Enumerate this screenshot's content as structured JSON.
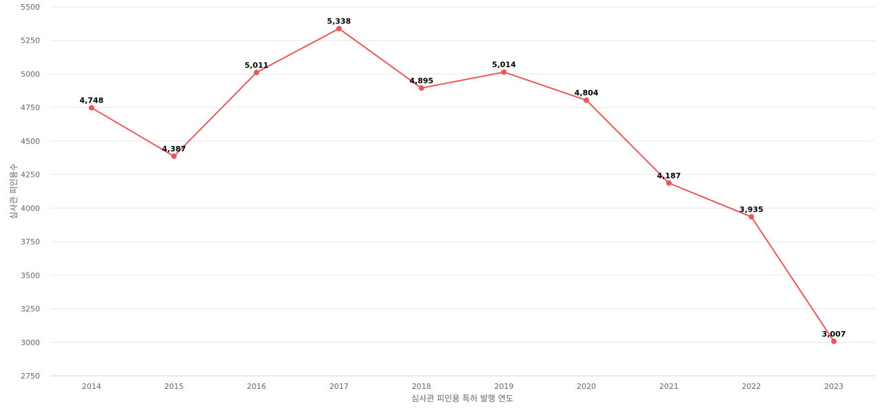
{
  "chart_data": {
    "type": "line",
    "xlabel": "심사관 피인용 특허 발행 연도",
    "ylabel": "심사관 피인용수",
    "ylim": [
      2750,
      5500
    ],
    "yticks": [
      2750,
      3000,
      3250,
      3500,
      3750,
      4000,
      4250,
      4500,
      4750,
      5000,
      5250,
      5500
    ],
    "categories": [
      "2014",
      "2015",
      "2016",
      "2017",
      "2018",
      "2019",
      "2020",
      "2021",
      "2022",
      "2023"
    ],
    "series": [
      {
        "color": "#e8585a",
        "values": [
          4748,
          4387,
          5011,
          5338,
          4895,
          5014,
          4804,
          4187,
          3935,
          3007
        ],
        "labels": [
          "4,748",
          "4,387",
          "5,011",
          "5,338",
          "4,895",
          "5,014",
          "4,804",
          "4,187",
          "3,935",
          "3,007"
        ]
      }
    ],
    "grid": true,
    "legend": "none"
  }
}
